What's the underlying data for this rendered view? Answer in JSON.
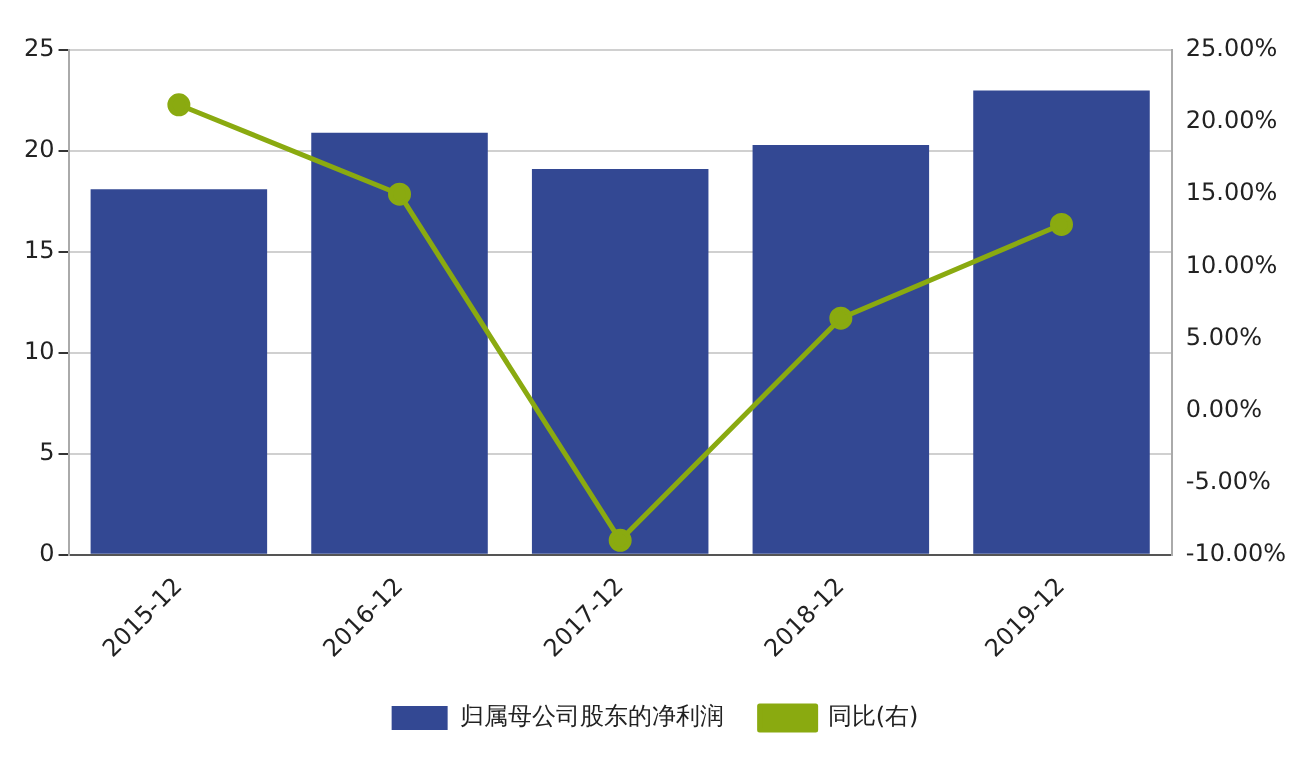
{
  "chart_data": {
    "type": "bar",
    "categories": [
      "2015-12",
      "2016-12",
      "2017-12",
      "2018-12",
      "2019-12"
    ],
    "series": [
      {
        "name": "归属母公司股东的净利润",
        "color": "#334893",
        "values": [
          18.1,
          20.9,
          19.1,
          20.3,
          23.0
        ]
      },
      {
        "name": "同比(右)",
        "type": "line",
        "axis": "y2",
        "color": "#8aaa10",
        "marker": "circle",
        "values": [
          21.2,
          15.0,
          -9.0,
          6.4,
          12.9
        ]
      }
    ],
    "ylim": [
      0,
      25
    ],
    "yticks": [
      0,
      5,
      10,
      15,
      20,
      25
    ],
    "y2lim": [
      -10,
      25
    ],
    "y2ticks": [
      {
        "value": 25,
        "label": "25.00%"
      },
      {
        "value": 20,
        "label": "20.00%"
      },
      {
        "value": 15,
        "label": "15.00%"
      },
      {
        "value": 10,
        "label": "10.00%"
      },
      {
        "value": 5,
        "label": "5.00%"
      },
      {
        "value": 0,
        "label": "0.00%"
      },
      {
        "value": -5,
        "label": "-5.00%"
      },
      {
        "value": -10,
        "label": "-10.00%"
      }
    ],
    "grid": "y",
    "legend": "bottom"
  }
}
